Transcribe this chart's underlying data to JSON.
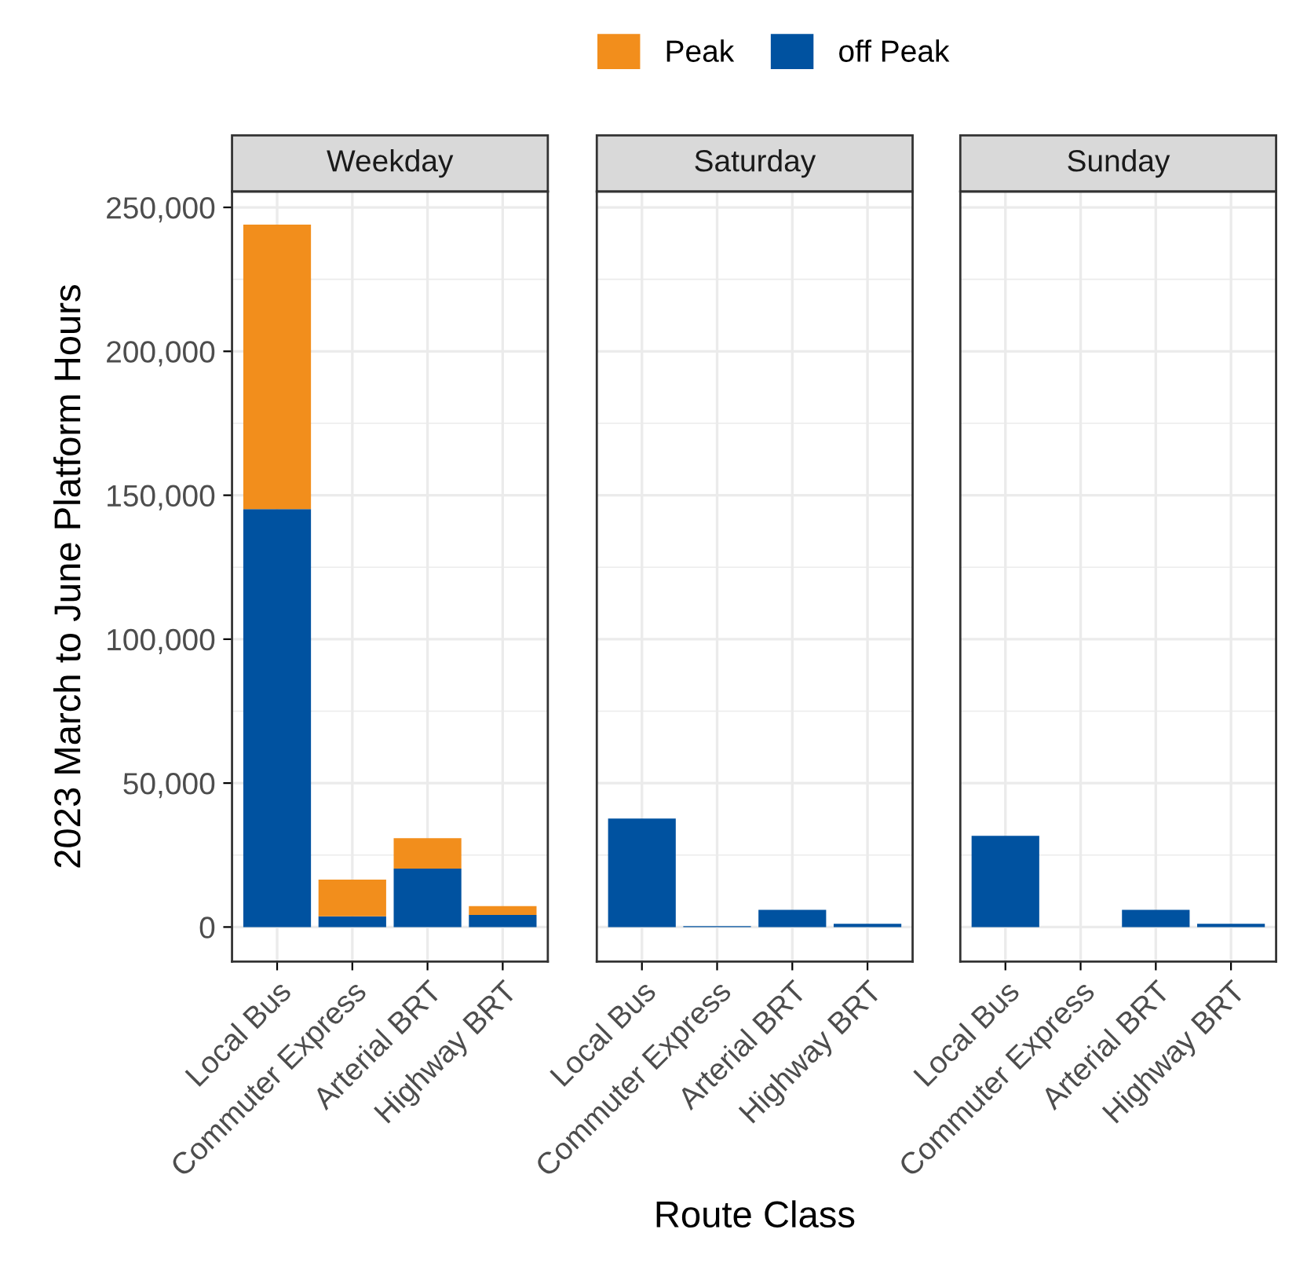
{
  "chart_data": [
    {
      "type": "bar",
      "title": "Weekday",
      "ylabel": "2023 March to June Platform Hours",
      "stacked": true,
      "grid": true,
      "legend": "top",
      "categories": [
        "Local Bus",
        "Commuter Express",
        "Arterial BRT",
        "Highway BRT"
      ],
      "series": [
        {
          "name": "off Peak",
          "color": "#0052a0",
          "values": [
            145200,
            3700,
            20300,
            4200
          ]
        },
        {
          "name": "Peak",
          "color": "#f28e1c",
          "values": [
            98800,
            12800,
            10600,
            3100
          ]
        }
      ],
      "ylim": [
        -12000,
        255500
      ],
      "yticks": [
        {
          "value": 0,
          "label": "0"
        },
        {
          "value": 50000,
          "label": "50,000"
        },
        {
          "value": 100000,
          "label": "100,000"
        },
        {
          "value": 150000,
          "label": "150,000"
        },
        {
          "value": 200000,
          "label": "200,000"
        },
        {
          "value": 250000,
          "label": "250,000"
        }
      ]
    },
    {
      "type": "bar",
      "title": "Saturday",
      "xlabel": "Route Class",
      "stacked": true,
      "grid": true,
      "tick_labels": "x",
      "categories": [
        "Local Bus",
        "Commuter Express",
        "Arterial BRT",
        "Highway BRT"
      ],
      "series": [
        {
          "color": "#0052a0",
          "values": [
            37700,
            300,
            6000,
            1100
          ]
        }
      ],
      "ylim": [
        -12000,
        255500
      ],
      "yticks": [
        0,
        50000,
        100000,
        150000,
        200000,
        250000
      ]
    },
    {
      "type": "bar",
      "title": "Sunday",
      "stacked": true,
      "grid": true,
      "tick_labels": "x",
      "categories": [
        "Local Bus",
        "Commuter Express",
        "Arterial BRT",
        "Highway BRT"
      ],
      "series": [
        {
          "color": "#0052a0",
          "values": [
            31700,
            null,
            6000,
            1100
          ]
        }
      ],
      "ylim": [
        -12000,
        255500
      ],
      "yticks": [
        0,
        50000,
        100000,
        150000,
        200000,
        250000
      ]
    }
  ]
}
